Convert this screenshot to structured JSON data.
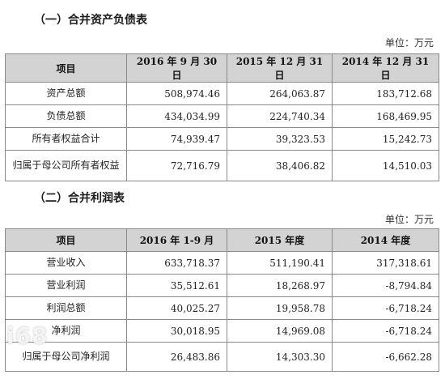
{
  "section1": {
    "title": "（一）合并资产负债表",
    "unit": "单位：万元",
    "headers": [
      "项目",
      "2016 年 9 月 30 日",
      "2015 年 12 月 31 日",
      "2014 年 12 月 31 日"
    ],
    "rows": [
      {
        "label": "资产总额",
        "values": [
          "508,974.46",
          "264,063.87",
          "183,712.68"
        ]
      },
      {
        "label": "负债总额",
        "values": [
          "434,034.99",
          "224,740.34",
          "168,469.95"
        ]
      },
      {
        "label": "所有者权益合计",
        "values": [
          "74,939.47",
          "39,323.53",
          "15,242.73"
        ]
      },
      {
        "label": "归属于母公司所有者权益",
        "values": [
          "72,716.79",
          "38,406.82",
          "14,510.03"
        ]
      }
    ]
  },
  "section2": {
    "title": "（二）合并利润表",
    "unit": "单位：万元",
    "headers": [
      "项目",
      "2016 年 1-9 月",
      "2015 年度",
      "2014 年度"
    ],
    "rows": [
      {
        "label": "营业收入",
        "values": [
          "633,718.37",
          "511,190.41",
          "317,318.61"
        ]
      },
      {
        "label": "营业利润",
        "values": [
          "35,512.61",
          "18,268.97",
          "-8,794.84"
        ]
      },
      {
        "label": "利润总额",
        "values": [
          "40,025.27",
          "19,958.78",
          "-6,718.24"
        ]
      },
      {
        "label": "净利润",
        "values": [
          "30,018.95",
          "14,969.08",
          "-6,718.24"
        ]
      },
      {
        "label": "归属于母公司净利润",
        "values": [
          "26,483.86",
          "14,303.30",
          "-6,662.28"
        ]
      }
    ]
  },
  "watermark": {
    "text": "i68",
    "color": "#ffffff"
  }
}
